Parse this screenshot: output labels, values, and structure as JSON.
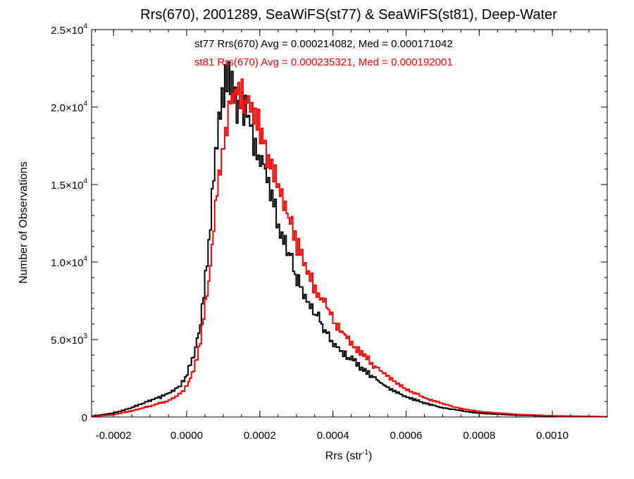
{
  "chart_data": {
    "type": "line",
    "style": "step-histogram",
    "title": "Rrs(670), 2001289, SeaWiFS(st77) & SeaWiFS(st81), Deep-Water",
    "xlabel": "Rrs (str",
    "xlabel_sup": "-1",
    "xlabel_close": ")",
    "ylabel": "Number of Observations",
    "xlim": [
      -0.00026,
      0.00115
    ],
    "ylim": [
      0,
      25000
    ],
    "grid": false,
    "x_ticks": [
      {
        "value": -0.0002,
        "label": "-0.0002"
      },
      {
        "value": 0.0,
        "label": "0.0000"
      },
      {
        "value": 0.0002,
        "label": "0.0002"
      },
      {
        "value": 0.0004,
        "label": "0.0004"
      },
      {
        "value": 0.0006,
        "label": "0.0006"
      },
      {
        "value": 0.0008,
        "label": "0.0008"
      },
      {
        "value": 0.001,
        "label": "0.0010"
      }
    ],
    "y_ticks": [
      {
        "value": 0,
        "mant": "0",
        "exp": ""
      },
      {
        "value": 5000,
        "mant": "5.0×10",
        "exp": "3"
      },
      {
        "value": 10000,
        "mant": "1.0×10",
        "exp": "4"
      },
      {
        "value": 15000,
        "mant": "1.5×10",
        "exp": "4"
      },
      {
        "value": 20000,
        "mant": "2.0×10",
        "exp": "4"
      },
      {
        "value": 25000,
        "mant": "2.5×10",
        "exp": "4"
      }
    ],
    "annotations": [
      {
        "text": "st77 Rrs(670) Avg = 0.000214082, Med = 0.000171042",
        "color": "#000000"
      },
      {
        "text": "st81 Rrs(670) Avg = 0.000235321, Med = 0.000192001",
        "color": "#ff0000"
      }
    ],
    "series": [
      {
        "name": "st77",
        "color": "#000000",
        "x": [
          -0.00026,
          -0.0002,
          -0.00015,
          -0.0001,
          -5e-05,
          -2e-05,
          0.0,
          2e-05,
          4e-05,
          6e-05,
          8e-05,
          0.0001,
          0.00011,
          0.00012,
          0.00013,
          0.00014,
          0.00015,
          0.00016,
          0.00018,
          0.0002,
          0.00022,
          0.00024,
          0.00026,
          0.00028,
          0.0003,
          0.00033,
          0.00036,
          0.0004,
          0.00045,
          0.0005,
          0.00055,
          0.0006,
          0.00065,
          0.0007,
          0.00075,
          0.0008,
          0.0009,
          0.001,
          0.00115
        ],
        "y": [
          50,
          250,
          600,
          1050,
          1500,
          2000,
          2700,
          4000,
          6300,
          11000,
          17000,
          20800,
          22000,
          21500,
          20500,
          20000,
          20200,
          19800,
          18300,
          17000,
          15500,
          13300,
          11800,
          10700,
          9000,
          7600,
          6400,
          4800,
          3700,
          2800,
          1900,
          1300,
          900,
          600,
          400,
          250,
          120,
          60,
          20
        ]
      },
      {
        "name": "st81",
        "color": "#ff0000",
        "x": [
          -0.00026,
          -0.0002,
          -0.00015,
          -0.0001,
          -5e-05,
          -2e-05,
          0.0,
          2e-05,
          4e-05,
          6e-05,
          8e-05,
          0.0001,
          0.00012,
          0.00013,
          0.00014,
          0.00015,
          0.00016,
          0.00018,
          0.0002,
          0.00022,
          0.00024,
          0.00026,
          0.00028,
          0.0003,
          0.00032,
          0.00035,
          0.00038,
          0.0004,
          0.00045,
          0.0005,
          0.00055,
          0.0006,
          0.00065,
          0.0007,
          0.00075,
          0.0008,
          0.0009,
          0.001,
          0.00115
        ],
        "y": [
          30,
          150,
          400,
          700,
          1050,
          1450,
          2000,
          3000,
          5200,
          8600,
          13500,
          17500,
          20500,
          21000,
          21300,
          21000,
          20800,
          19800,
          18500,
          17300,
          15800,
          14300,
          12800,
          11300,
          10200,
          8300,
          7300,
          6300,
          4800,
          3600,
          2600,
          1800,
          1250,
          850,
          550,
          350,
          170,
          80,
          25
        ]
      }
    ]
  }
}
